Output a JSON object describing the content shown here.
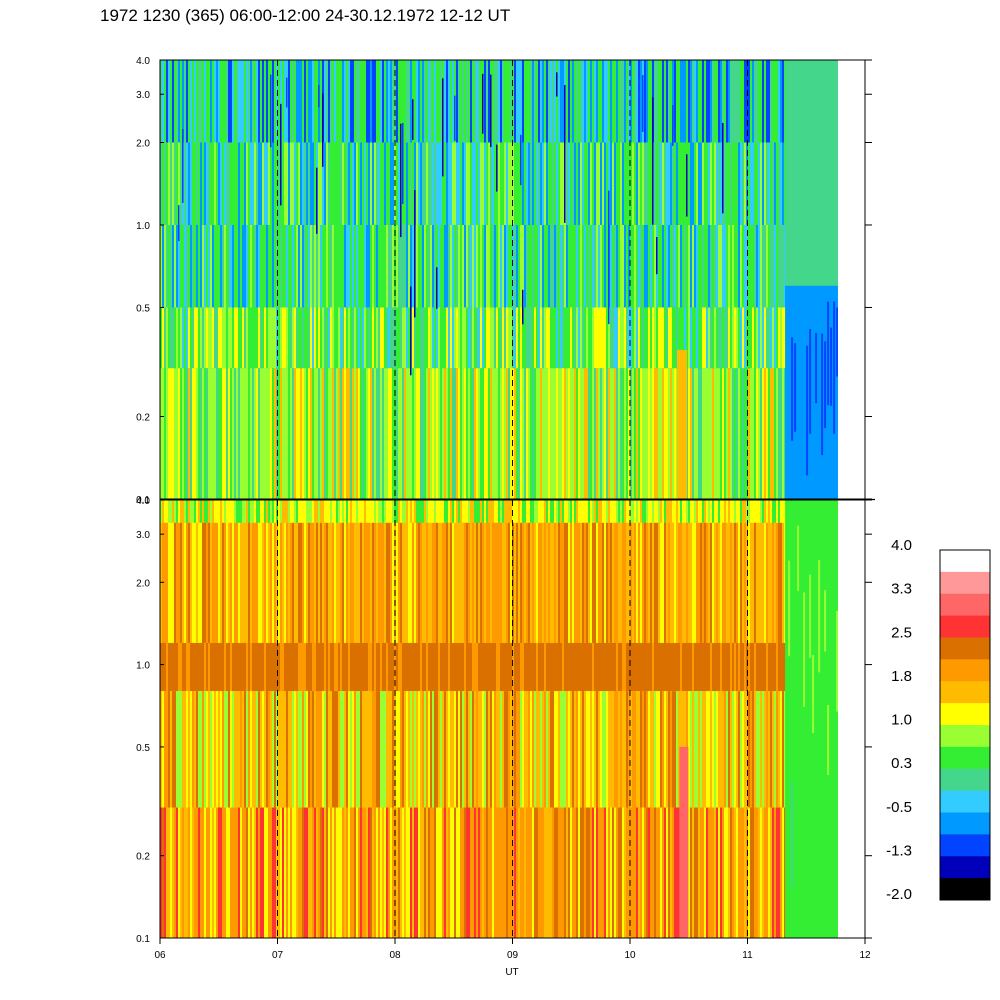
{
  "title": "1972 1230 (365) 06:00-12:00 24-30.12.1972  12-12 UT",
  "chart_data": {
    "type": "heatmap",
    "title": "1972 1230 (365) 06:00-12:00 24-30.12.1972  12-12 UT",
    "xlabel": "UT",
    "xlim": [
      6,
      12
    ],
    "x_ticks": [
      "06",
      "07",
      "08",
      "09",
      "10",
      "11",
      "12"
    ],
    "data_end_hour": 11.77,
    "dashed_hours": [
      7,
      8,
      9,
      10,
      11
    ],
    "y_scale": "log",
    "panels": [
      {
        "ylim": [
          0.1,
          4.0
        ],
        "y_ticks": [
          "0.1",
          "0.2",
          "0.5",
          "1.0",
          "2.0",
          "3.0",
          "4.0"
        ],
        "description_level": "mostly green/cyan (about -0.5 to 1.0), dark blue streaks, blue after 11.3 UT"
      },
      {
        "ylim": [
          0.1,
          4.0
        ],
        "y_ticks": [
          "0.1",
          "0.2",
          "0.5",
          "1.0",
          "2.0",
          "3.0",
          "4.0"
        ],
        "description_level": "orange/yellow (about 1.0 to 2.5), brown band near 0.9, green after 11.3 UT"
      }
    ],
    "colorbar": {
      "labels": [
        "4.0",
        "3.3",
        "2.5",
        "1.8",
        "1.0",
        "0.3",
        "-0.5",
        "-1.3",
        "-2.0"
      ],
      "colors": [
        "#ffffff",
        "#ff9999",
        "#ff6666",
        "#ff3333",
        "#d97000",
        "#ff9900",
        "#ffbb00",
        "#ffff00",
        "#99ff33",
        "#33ee33",
        "#44d68a",
        "#33ccff",
        "#0099ff",
        "#0044ff",
        "#0000bb",
        "#000000"
      ]
    }
  }
}
